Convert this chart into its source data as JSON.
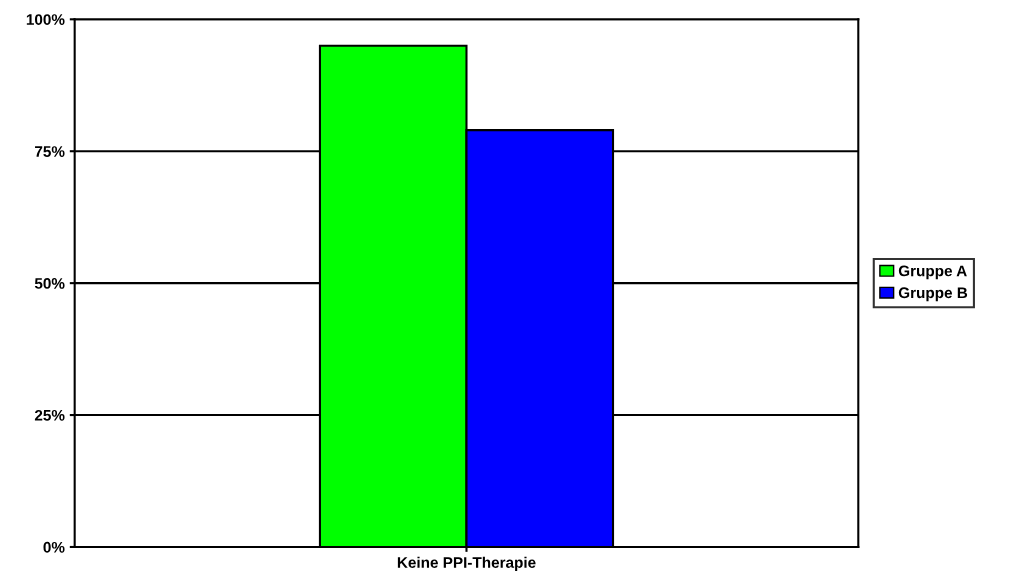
{
  "chart_data": {
    "type": "bar",
    "categories": [
      "Keine PPI-Therapie"
    ],
    "series": [
      {
        "name": "Gruppe A",
        "color": "#00ff00",
        "values": [
          95
        ]
      },
      {
        "name": "Gruppe B",
        "color": "#0000ff",
        "values": [
          79
        ]
      }
    ],
    "ylim": [
      0,
      100
    ],
    "yticks": [
      {
        "value": 0,
        "label": "0%"
      },
      {
        "value": 25,
        "label": "25%"
      },
      {
        "value": 50,
        "label": "50%"
      },
      {
        "value": 75,
        "label": "75%"
      },
      {
        "value": 100,
        "label": "100%"
      }
    ],
    "grid": "y",
    "legend": "right"
  }
}
